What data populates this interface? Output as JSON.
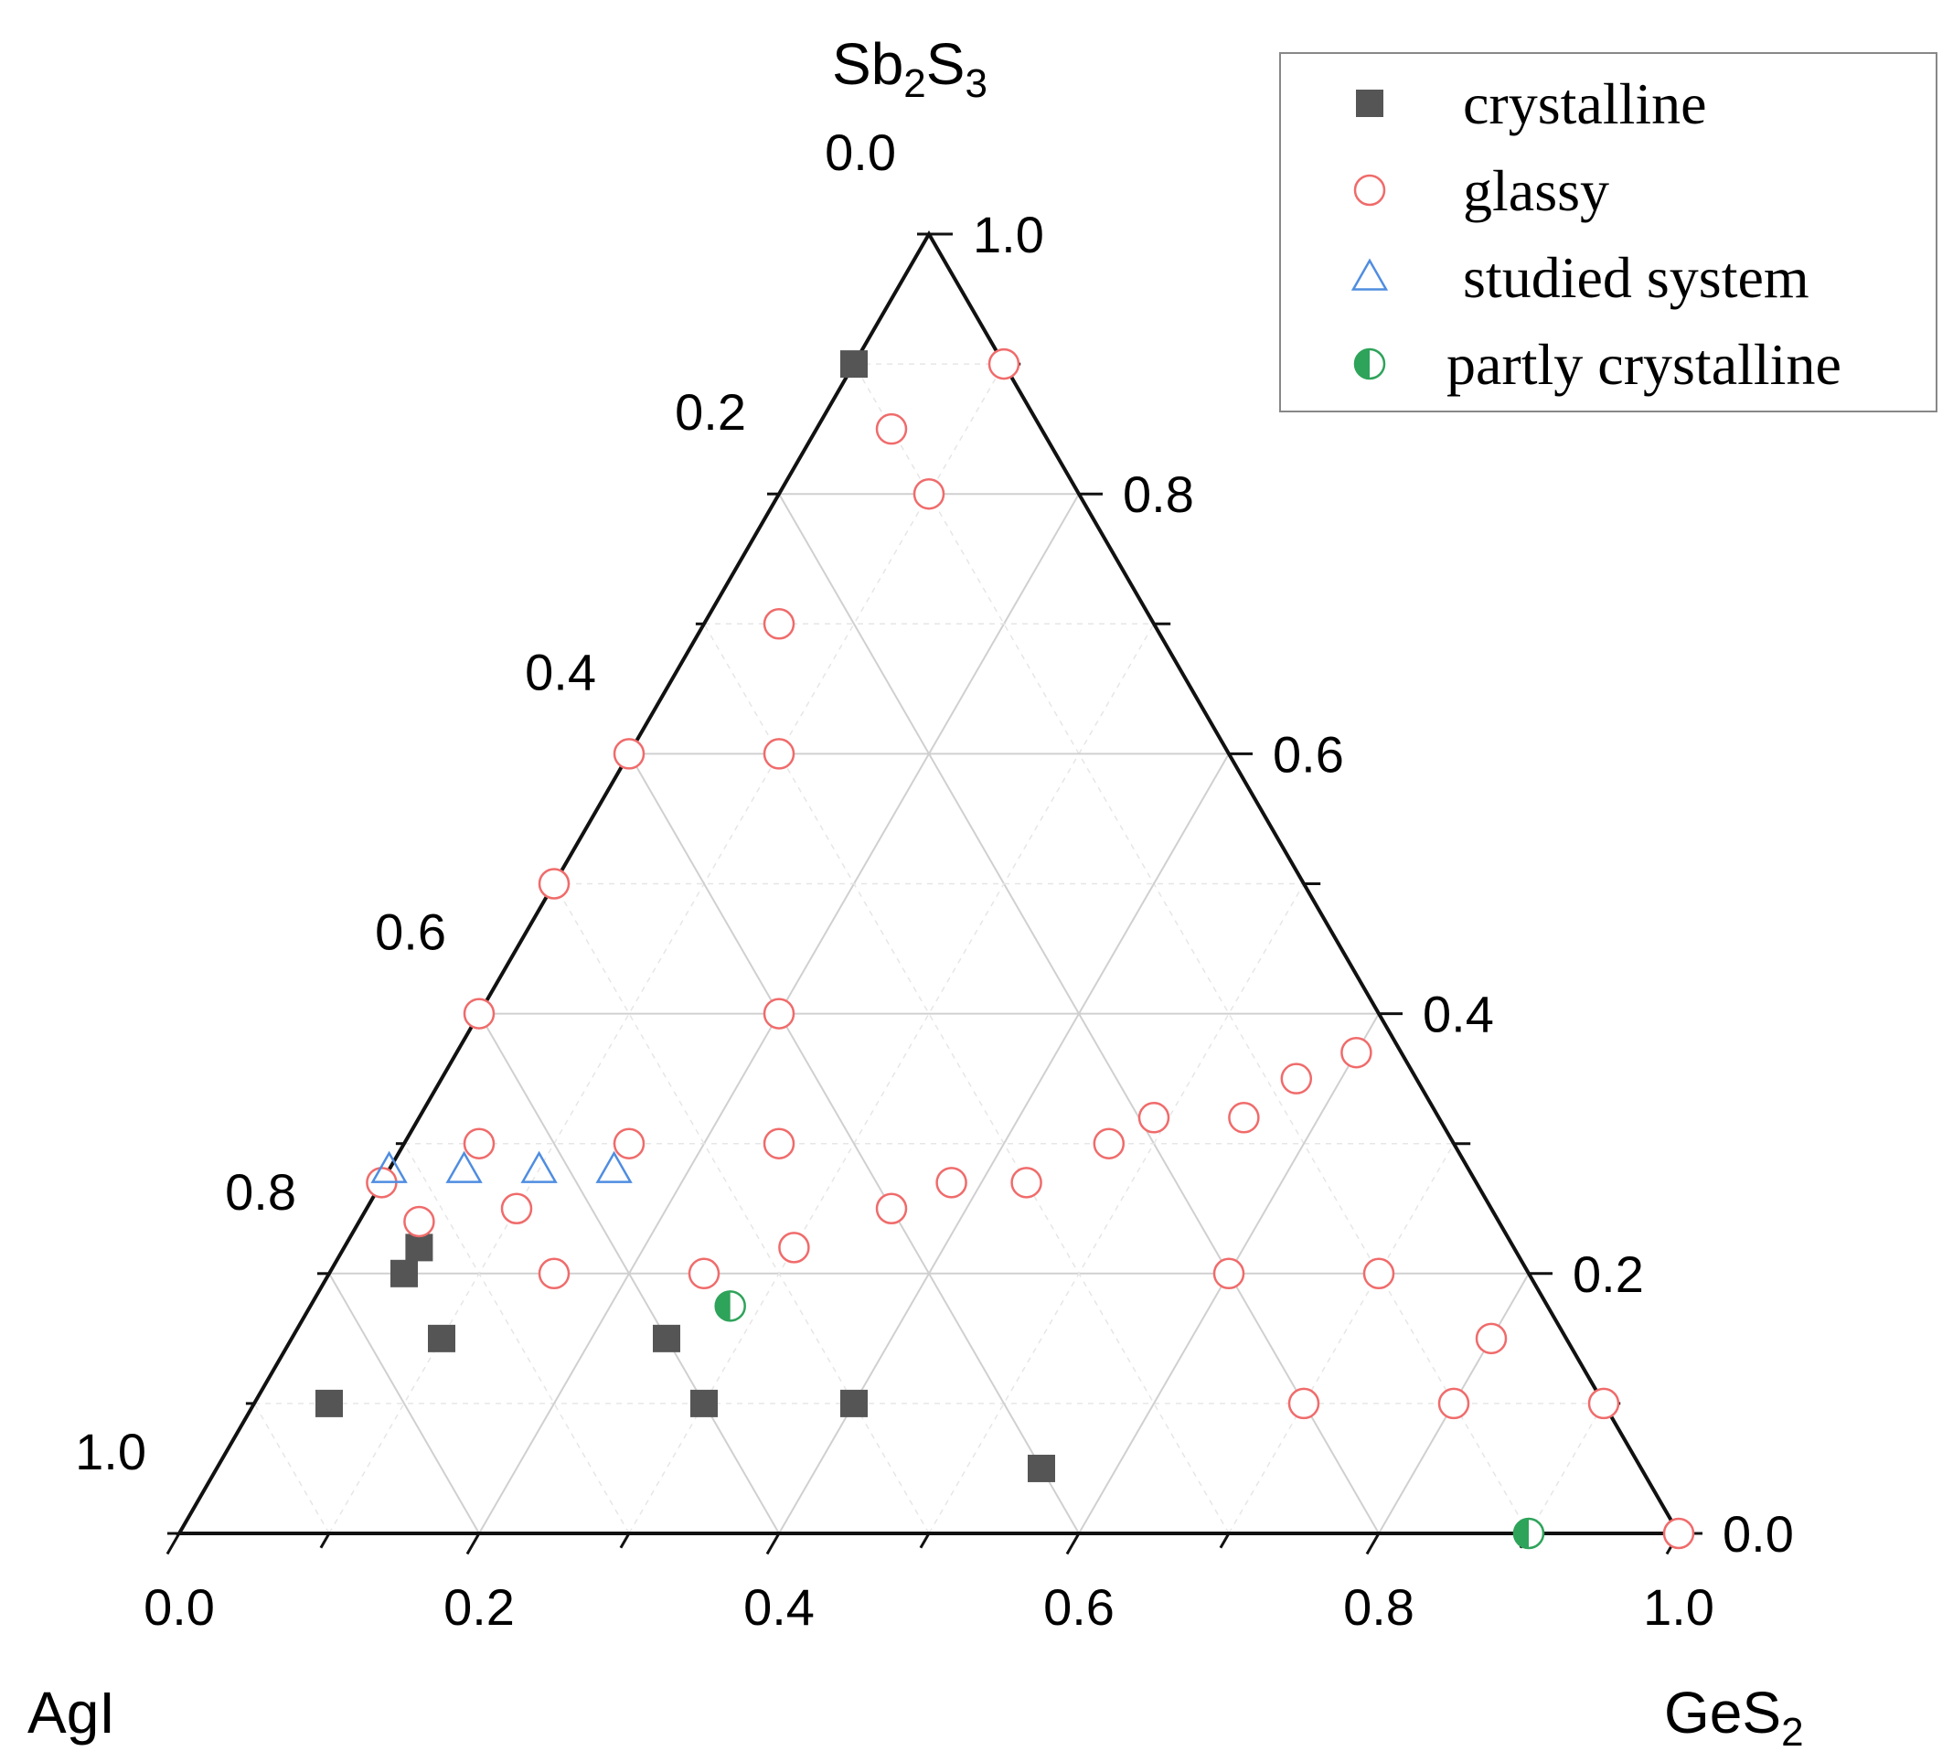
{
  "chart_data": {
    "type": "ternary-scatter",
    "axes": {
      "top": {
        "label_main": "Sb",
        "label_sub1": "2",
        "label_mid": "S",
        "label_sub2": "3",
        "ticks": [
          "0.0",
          "0.2",
          "0.4",
          "0.6",
          "0.8",
          "1.0"
        ]
      },
      "left": {
        "label": "AgI",
        "ticks": [
          "1.0",
          "0.8",
          "0.6",
          "0.4",
          "0.2",
          "0.0"
        ]
      },
      "right": {
        "label_main": "GeS",
        "label_sub": "2",
        "ticks": [
          "0.0",
          "0.2",
          "0.4",
          "0.6",
          "0.8",
          "1.0"
        ]
      }
    },
    "grid": true,
    "legend": {
      "position": "top-right",
      "entries": [
        {
          "key": "crystalline",
          "label": "crystalline",
          "marker": "filled-square",
          "color": "#555555"
        },
        {
          "key": "glassy",
          "label": "glassy",
          "marker": "open-circle",
          "color": "#f06b6b"
        },
        {
          "key": "studied",
          "label": "studied system",
          "marker": "open-triangle",
          "color": "#4f8de0"
        },
        {
          "key": "partly",
          "label": "partly crystalline",
          "marker": "half-circle",
          "color": "#2ea35a"
        }
      ]
    },
    "series": [
      {
        "key": "crystalline",
        "name": "crystalline",
        "points": [
          {
            "GeS2": 0.0,
            "Sb2S3": 0.9
          },
          {
            "GeS2": 0.05,
            "Sb2S3": 0.22
          },
          {
            "GeS2": 0.05,
            "Sb2S3": 0.2
          },
          {
            "GeS2": 0.1,
            "Sb2S3": 0.15
          },
          {
            "GeS2": 0.05,
            "Sb2S3": 0.1
          },
          {
            "GeS2": 0.25,
            "Sb2S3": 0.15
          },
          {
            "GeS2": 0.3,
            "Sb2S3": 0.1
          },
          {
            "GeS2": 0.4,
            "Sb2S3": 0.1
          },
          {
            "GeS2": 0.55,
            "Sb2S3": 0.05
          }
        ]
      },
      {
        "key": "glassy",
        "name": "glassy",
        "points": [
          {
            "GeS2": 0.1,
            "Sb2S3": 0.9
          },
          {
            "GeS2": 0.05,
            "Sb2S3": 0.85
          },
          {
            "GeS2": 0.1,
            "Sb2S3": 0.8
          },
          {
            "GeS2": 0.05,
            "Sb2S3": 0.7
          },
          {
            "GeS2": 0.0,
            "Sb2S3": 0.6
          },
          {
            "GeS2": 0.1,
            "Sb2S3": 0.6
          },
          {
            "GeS2": 0.0,
            "Sb2S3": 0.5
          },
          {
            "GeS2": 0.0,
            "Sb2S3": 0.4
          },
          {
            "GeS2": 0.2,
            "Sb2S3": 0.4
          },
          {
            "GeS2": 0.0,
            "Sb2S3": 0.27
          },
          {
            "GeS2": 0.05,
            "Sb2S3": 0.3
          },
          {
            "GeS2": 0.15,
            "Sb2S3": 0.3
          },
          {
            "GeS2": 0.25,
            "Sb2S3": 0.3
          },
          {
            "GeS2": 0.04,
            "Sb2S3": 0.24
          },
          {
            "GeS2": 0.1,
            "Sb2S3": 0.25
          },
          {
            "GeS2": 0.15,
            "Sb2S3": 0.2
          },
          {
            "GeS2": 0.25,
            "Sb2S3": 0.2
          },
          {
            "GeS2": 0.3,
            "Sb2S3": 0.22
          },
          {
            "GeS2": 0.35,
            "Sb2S3": 0.25
          },
          {
            "GeS2": 0.38,
            "Sb2S3": 0.27
          },
          {
            "GeS2": 0.43,
            "Sb2S3": 0.27
          },
          {
            "GeS2": 0.47,
            "Sb2S3": 0.3
          },
          {
            "GeS2": 0.49,
            "Sb2S3": 0.32
          },
          {
            "GeS2": 0.55,
            "Sb2S3": 0.32
          },
          {
            "GeS2": 0.57,
            "Sb2S3": 0.35
          },
          {
            "GeS2": 0.6,
            "Sb2S3": 0.37
          },
          {
            "GeS2": 0.6,
            "Sb2S3": 0.2
          },
          {
            "GeS2": 0.7,
            "Sb2S3": 0.2
          },
          {
            "GeS2": 0.7,
            "Sb2S3": 0.1
          },
          {
            "GeS2": 0.8,
            "Sb2S3": 0.1
          },
          {
            "GeS2": 0.8,
            "Sb2S3": 0.15
          },
          {
            "GeS2": 0.9,
            "Sb2S3": 0.1
          },
          {
            "GeS2": 1.0,
            "Sb2S3": 0.0
          }
        ]
      },
      {
        "key": "studied",
        "name": "studied system",
        "points": [
          {
            "GeS2": 0.0,
            "Sb2S3": 0.28
          },
          {
            "GeS2": 0.05,
            "Sb2S3": 0.28
          },
          {
            "GeS2": 0.1,
            "Sb2S3": 0.28
          },
          {
            "GeS2": 0.15,
            "Sb2S3": 0.28
          }
        ]
      },
      {
        "key": "partly",
        "name": "partly crystalline",
        "points": [
          {
            "GeS2": 0.28,
            "Sb2S3": 0.175
          },
          {
            "GeS2": 0.9,
            "Sb2S3": 0.0
          }
        ]
      }
    ]
  }
}
